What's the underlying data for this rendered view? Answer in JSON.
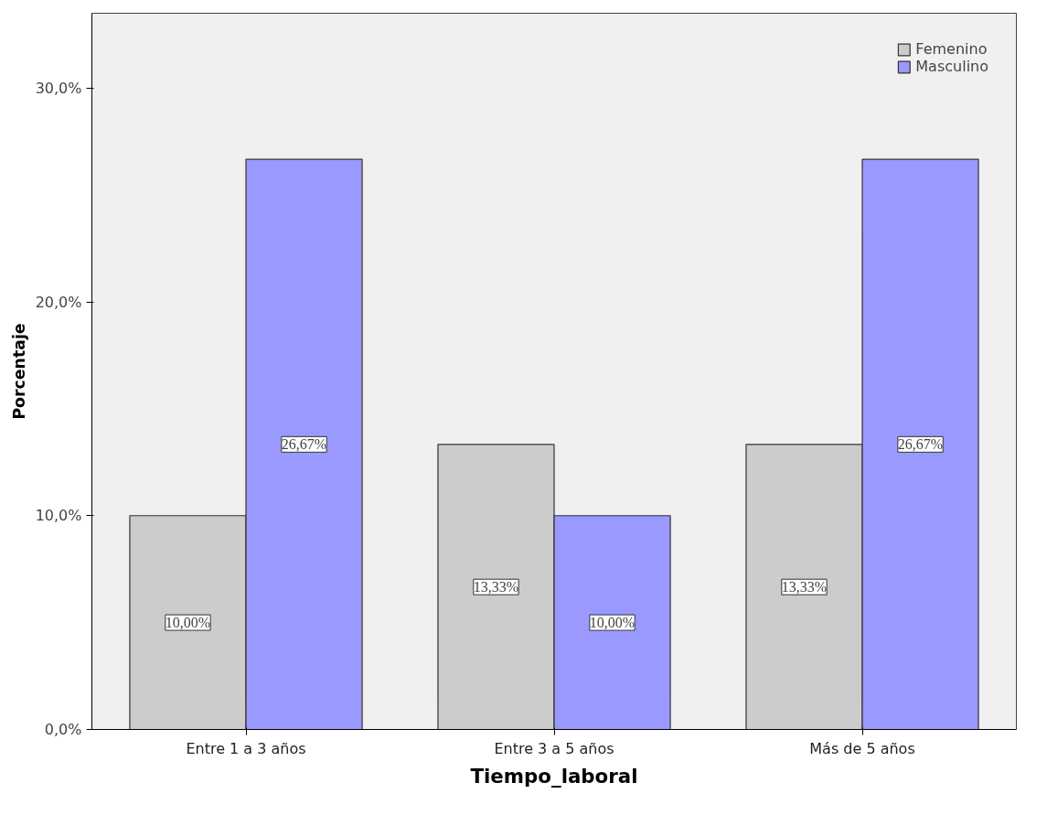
{
  "chart_data": {
    "type": "bar",
    "xlabel": "Tiempo_laboral",
    "ylabel": "Porcentaje",
    "categories": [
      "Entre 1 a 3 años",
      "Entre 3 a 5 años",
      "Más de 5 años"
    ],
    "series": [
      {
        "name": "Femenino",
        "color": "#cccccc",
        "values": [
          10.0,
          13.33,
          13.33
        ],
        "value_labels": [
          "10,00%",
          "13,33%",
          "13,33%"
        ]
      },
      {
        "name": "Masculino",
        "color": "#9999ff",
        "values": [
          26.67,
          10.0,
          26.67
        ],
        "value_labels": [
          "26,67%",
          "10,00%",
          "26,67%"
        ]
      }
    ],
    "ylim": [
      0,
      33.5
    ],
    "yticks": [
      {
        "value": 0,
        "label": "0,0%"
      },
      {
        "value": 10,
        "label": "10,0%"
      },
      {
        "value": 20,
        "label": "20,0%"
      },
      {
        "value": 30,
        "label": "30,0%"
      }
    ],
    "grid": false,
    "legend": "top right"
  }
}
